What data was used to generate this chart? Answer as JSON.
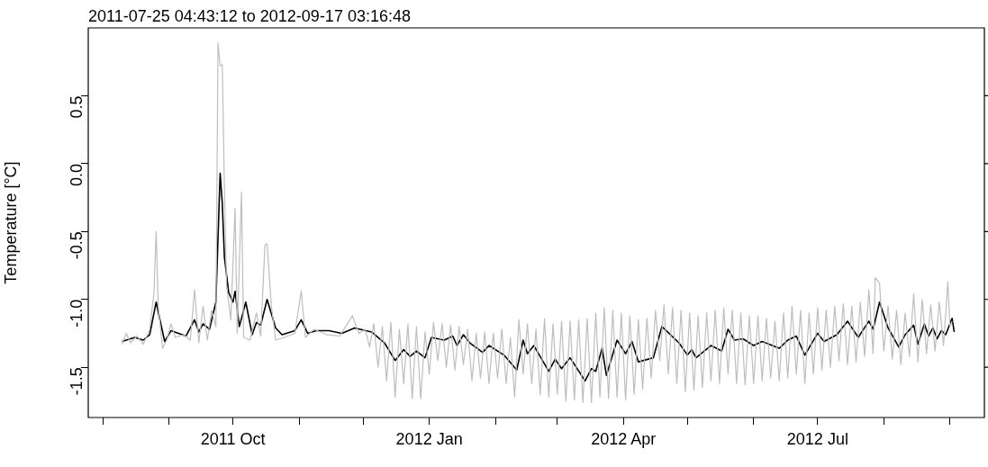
{
  "chart_data": {
    "type": "line",
    "title": "2011-07-25 04:43:12 to 2012-09-17 03:16:48",
    "ylabel": "Temperature [°C]",
    "xlim": [
      "2011-07-25T04:43",
      "2012-09-17T03:16"
    ],
    "xticks": [
      {
        "value": "2011-08",
        "label": null
      },
      {
        "value": "2011-09",
        "label": null
      },
      {
        "value": "2011-10",
        "label": "2011 Oct"
      },
      {
        "value": "2011-11",
        "label": null
      },
      {
        "value": "2011-12",
        "label": null
      },
      {
        "value": "2012-01",
        "label": "2012 Jan"
      },
      {
        "value": "2012-02",
        "label": null
      },
      {
        "value": "2012-03",
        "label": null
      },
      {
        "value": "2012-04",
        "label": "2012 Apr"
      },
      {
        "value": "2012-05",
        "label": null
      },
      {
        "value": "2012-06",
        "label": null
      },
      {
        "value": "2012-07",
        "label": "2012 Jul"
      },
      {
        "value": "2012-08",
        "label": null
      },
      {
        "value": "2012-09",
        "label": null
      }
    ],
    "ylim": [
      -1.87,
      1.0
    ],
    "yticks": [
      {
        "value": -1.5,
        "label": "-1.5"
      },
      {
        "value": -1.0,
        "label": "-1.0"
      },
      -0.5,
      {
        "value": 0,
        "label": "0.0"
      },
      0.5
    ],
    "grid": false,
    "legend": false,
    "marker": "none",
    "line_style": "solid",
    "series": [
      {
        "color": "#bebebe",
        "x": [
          "2011-08-10",
          "2011-08-12",
          "2011-08-14",
          "2011-08-17",
          "2011-08-20",
          "2011-08-23",
          "2011-08-25",
          "2011-08-26",
          "2011-08-27",
          "2011-08-29",
          "2011-08-31",
          "2011-09-02",
          "2011-09-04",
          "2011-09-08",
          "2011-09-11",
          "2011-09-13",
          "2011-09-15",
          "2011-09-17",
          "2011-09-19",
          "2011-09-21",
          "2011-09-23",
          "2011-09-24",
          "2011-09-25",
          "2011-09-26",
          "2011-09-27",
          "2011-09-28",
          "2011-09-30",
          "2011-10-02",
          "2011-10-03",
          "2011-10-05",
          "2011-10-06",
          "2011-10-09",
          "2011-10-12",
          "2011-10-14",
          "2011-10-16",
          "2011-10-17",
          "2011-10-19",
          "2011-10-21",
          "2011-10-25",
          "2011-10-30",
          "2011-11-02",
          "2011-11-04",
          "2011-11-08",
          "2011-11-14",
          "2011-11-20",
          "2011-11-26",
          "2011-11-29",
          "2011-12-02",
          "2011-12-04",
          "2011-12-06",
          "2011-12-08",
          "2011-12-10",
          "2011-12-12",
          "2011-12-14",
          "2011-12-16",
          "2011-12-18",
          "2011-12-20",
          "2011-12-22",
          "2011-12-24",
          "2011-12-26",
          "2011-12-28",
          "2011-12-30",
          "2012-01-01",
          "2012-01-03",
          "2012-01-05",
          "2012-01-07",
          "2012-01-09",
          "2012-01-11",
          "2012-01-13",
          "2012-01-15",
          "2012-01-17",
          "2012-01-19",
          "2012-01-21",
          "2012-01-23",
          "2012-01-25",
          "2012-01-27",
          "2012-01-29",
          "2012-01-31",
          "2012-02-02",
          "2012-02-04",
          "2012-02-06",
          "2012-02-08",
          "2012-02-10",
          "2012-02-12",
          "2012-02-14",
          "2012-02-16",
          "2012-02-18",
          "2012-02-20",
          "2012-02-22",
          "2012-02-24",
          "2012-02-26",
          "2012-02-28",
          "2012-03-01",
          "2012-03-03",
          "2012-03-05",
          "2012-03-07",
          "2012-03-09",
          "2012-03-11",
          "2012-03-13",
          "2012-03-15",
          "2012-03-17",
          "2012-03-19",
          "2012-03-21",
          "2012-03-23",
          "2012-03-25",
          "2012-03-27",
          "2012-03-29",
          "2012-03-31",
          "2012-04-02",
          "2012-04-04",
          "2012-04-06",
          "2012-04-08",
          "2012-04-10",
          "2012-04-12",
          "2012-04-14",
          "2012-04-16",
          "2012-04-18",
          "2012-04-20",
          "2012-04-22",
          "2012-04-24",
          "2012-04-26",
          "2012-04-28",
          "2012-04-30",
          "2012-05-02",
          "2012-05-04",
          "2012-05-06",
          "2012-05-08",
          "2012-05-10",
          "2012-05-12",
          "2012-05-14",
          "2012-05-16",
          "2012-05-18",
          "2012-05-20",
          "2012-05-22",
          "2012-05-24",
          "2012-05-26",
          "2012-05-28",
          "2012-05-30",
          "2012-06-01",
          "2012-06-03",
          "2012-06-05",
          "2012-06-07",
          "2012-06-09",
          "2012-06-11",
          "2012-06-13",
          "2012-06-15",
          "2012-06-17",
          "2012-06-19",
          "2012-06-21",
          "2012-06-23",
          "2012-06-25",
          "2012-06-27",
          "2012-06-29",
          "2012-07-01",
          "2012-07-03",
          "2012-07-05",
          "2012-07-07",
          "2012-07-09",
          "2012-07-11",
          "2012-07-13",
          "2012-07-15",
          "2012-07-17",
          "2012-07-19",
          "2012-07-21",
          "2012-07-23",
          "2012-07-25",
          "2012-07-27",
          "2012-07-28",
          "2012-07-30",
          "2012-08-01",
          "2012-08-03",
          "2012-08-05",
          "2012-08-07",
          "2012-08-09",
          "2012-08-11",
          "2012-08-13",
          "2012-08-15",
          "2012-08-17",
          "2012-08-19",
          "2012-08-21",
          "2012-08-23",
          "2012-08-25",
          "2012-08-27",
          "2012-08-29",
          "2012-08-31",
          "2012-09-01",
          "2012-09-02"
        ],
        "values": [
          -1.33,
          -1.25,
          -1.32,
          -1.27,
          -1.33,
          -1.22,
          -0.95,
          -0.5,
          -1.05,
          -1.36,
          -1.3,
          -1.18,
          -1.28,
          -1.26,
          -1.3,
          -0.93,
          -1.32,
          -1.05,
          -1.3,
          -1.08,
          -1.2,
          0.89,
          0.72,
          0.73,
          -0.17,
          -0.9,
          -1.15,
          -0.33,
          -1.25,
          -0.21,
          -1.28,
          -1.3,
          -1.1,
          -1.27,
          -0.6,
          -0.59,
          -1.05,
          -1.3,
          -1.28,
          -1.25,
          -0.94,
          -1.28,
          -1.22,
          -1.26,
          -1.27,
          -1.12,
          -1.25,
          -1.22,
          -1.35,
          -1.18,
          -1.5,
          -1.2,
          -1.6,
          -1.17,
          -1.72,
          -1.22,
          -1.62,
          -1.18,
          -1.73,
          -1.2,
          -1.73,
          -1.24,
          -1.55,
          -1.17,
          -1.45,
          -1.18,
          -1.5,
          -1.19,
          -1.52,
          -1.2,
          -1.48,
          -1.22,
          -1.6,
          -1.25,
          -1.58,
          -1.24,
          -1.62,
          -1.25,
          -1.58,
          -1.22,
          -1.62,
          -1.28,
          -1.72,
          -1.15,
          -1.55,
          -1.18,
          -1.62,
          -1.22,
          -1.7,
          -1.14,
          -1.72,
          -1.18,
          -1.7,
          -1.16,
          -1.75,
          -1.16,
          -1.74,
          -1.15,
          -1.76,
          -1.14,
          -1.76,
          -1.1,
          -1.72,
          -1.06,
          -1.73,
          -1.08,
          -1.72,
          -1.1,
          -1.74,
          -1.12,
          -1.7,
          -1.15,
          -1.66,
          -1.14,
          -1.58,
          -1.08,
          -1.45,
          -1.04,
          -1.55,
          -1.06,
          -1.62,
          -1.08,
          -1.68,
          -1.1,
          -1.67,
          -1.12,
          -1.65,
          -1.1,
          -1.6,
          -1.08,
          -1.62,
          -1.06,
          -1.55,
          -1.08,
          -1.62,
          -1.1,
          -1.63,
          -1.12,
          -1.62,
          -1.12,
          -1.6,
          -1.14,
          -1.58,
          -1.16,
          -1.6,
          -1.1,
          -1.58,
          -1.05,
          -1.55,
          -1.08,
          -1.62,
          -1.1,
          -1.55,
          -1.06,
          -1.52,
          -1.08,
          -1.5,
          -1.05,
          -1.45,
          -1.03,
          -1.48,
          -1.05,
          -1.46,
          -1.02,
          -1.42,
          -0.93,
          -1.4,
          -0.84,
          -0.88,
          -1.38,
          -1.05,
          -1.44,
          -1.08,
          -1.48,
          -1.1,
          -1.42,
          -0.96,
          -1.46,
          -1.0,
          -1.4,
          -1.04,
          -1.38,
          -1.02,
          -1.34,
          -0.87,
          -1.2,
          -1.16
        ]
      },
      {
        "color": "#000000",
        "x": [
          "2011-08-10",
          "2011-08-16",
          "2011-08-20",
          "2011-08-23",
          "2011-08-26",
          "2011-08-30",
          "2011-09-02",
          "2011-09-09",
          "2011-09-13",
          "2011-09-15",
          "2011-09-17",
          "2011-09-20",
          "2011-09-23",
          "2011-09-25",
          "2011-09-26",
          "2011-09-27",
          "2011-09-29",
          "2011-10-01",
          "2011-10-02",
          "2011-10-04",
          "2011-10-07",
          "2011-10-10",
          "2011-10-12",
          "2011-10-14",
          "2011-10-17",
          "2011-10-21",
          "2011-10-24",
          "2011-10-30",
          "2011-11-02",
          "2011-11-05",
          "2011-11-09",
          "2011-11-15",
          "2011-11-21",
          "2011-11-27",
          "2011-12-05",
          "2011-12-11",
          "2011-12-16",
          "2011-12-20",
          "2011-12-23",
          "2011-12-26",
          "2011-12-30",
          "2012-01-02",
          "2012-01-08",
          "2012-01-12",
          "2012-01-14",
          "2012-01-17",
          "2012-01-20",
          "2012-01-26",
          "2012-01-29",
          "2012-02-05",
          "2012-02-11",
          "2012-02-14",
          "2012-02-16",
          "2012-02-19",
          "2012-02-26",
          "2012-02-29",
          "2012-03-03",
          "2012-03-07",
          "2012-03-14",
          "2012-03-17",
          "2012-03-19",
          "2012-03-22",
          "2012-03-24",
          "2012-03-29",
          "2012-04-02",
          "2012-04-05",
          "2012-04-08",
          "2012-04-15",
          "2012-04-19",
          "2012-04-27",
          "2012-05-01",
          "2012-05-03",
          "2012-05-05",
          "2012-05-12",
          "2012-05-17",
          "2012-05-20",
          "2012-05-23",
          "2012-05-27",
          "2012-06-01",
          "2012-06-05",
          "2012-06-13",
          "2012-06-17",
          "2012-06-21",
          "2012-06-25",
          "2012-07-01",
          "2012-07-04",
          "2012-07-10",
          "2012-07-15",
          "2012-07-20",
          "2012-07-25",
          "2012-07-27",
          "2012-07-30",
          "2012-08-03",
          "2012-08-08",
          "2012-08-11",
          "2012-08-15",
          "2012-08-17",
          "2012-08-20",
          "2012-08-22",
          "2012-08-24",
          "2012-08-26",
          "2012-08-28",
          "2012-08-30",
          "2012-09-02",
          "2012-09-03"
        ],
        "values": [
          -1.31,
          -1.28,
          -1.3,
          -1.26,
          -1.02,
          -1.31,
          -1.23,
          -1.27,
          -1.15,
          -1.24,
          -1.18,
          -1.22,
          -1.02,
          -0.07,
          -0.29,
          -0.69,
          -0.95,
          -1.02,
          -0.94,
          -1.2,
          -1.02,
          -1.26,
          -1.17,
          -1.19,
          -1.0,
          -1.21,
          -1.26,
          -1.23,
          -1.15,
          -1.25,
          -1.23,
          -1.23,
          -1.25,
          -1.21,
          -1.24,
          -1.32,
          -1.45,
          -1.37,
          -1.42,
          -1.38,
          -1.43,
          -1.28,
          -1.3,
          -1.27,
          -1.34,
          -1.26,
          -1.32,
          -1.39,
          -1.34,
          -1.41,
          -1.52,
          -1.3,
          -1.4,
          -1.34,
          -1.53,
          -1.44,
          -1.51,
          -1.43,
          -1.6,
          -1.51,
          -1.53,
          -1.36,
          -1.56,
          -1.3,
          -1.4,
          -1.31,
          -1.46,
          -1.43,
          -1.2,
          -1.32,
          -1.41,
          -1.37,
          -1.43,
          -1.34,
          -1.38,
          -1.22,
          -1.3,
          -1.29,
          -1.34,
          -1.31,
          -1.36,
          -1.3,
          -1.27,
          -1.41,
          -1.25,
          -1.31,
          -1.26,
          -1.16,
          -1.28,
          -1.16,
          -1.22,
          -1.02,
          -1.21,
          -1.35,
          -1.26,
          -1.19,
          -1.33,
          -1.18,
          -1.27,
          -1.21,
          -1.29,
          -1.23,
          -1.26,
          -1.14,
          -1.24
        ]
      }
    ]
  }
}
